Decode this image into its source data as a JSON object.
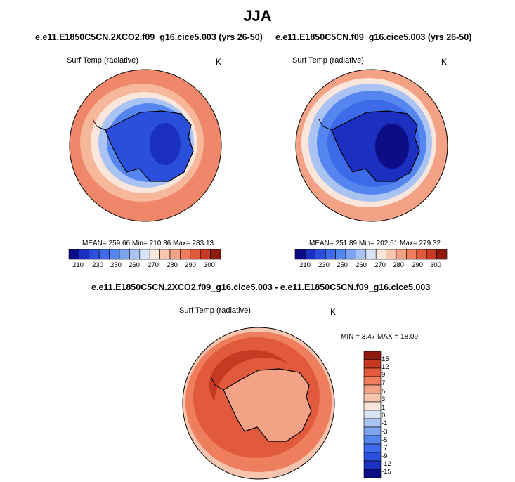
{
  "title": "JJA",
  "panels": [
    {
      "case": "e.e11.E1850C5CN.2XCO2.f09_g16.cice5.003 (yrs 26-50)",
      "variable": "Surf Temp (radiative)",
      "units": "K",
      "stats": "MEAN= 259.66  Min= 210.36  Max= 283.13",
      "colorbar_ticks": [
        "210",
        "230",
        "250",
        "260",
        "270",
        "280",
        "290",
        "300"
      ]
    },
    {
      "case": "e.e11.E1850C5CN.f09_g16.cice5.003 (yrs 26-50)",
      "variable": "Surf Temp (radiative)",
      "units": "K",
      "stats": "MEAN= 251.89  Min= 202.51  Max= 279.32",
      "colorbar_ticks": [
        "210",
        "230",
        "250",
        "260",
        "270",
        "280",
        "290",
        "300"
      ]
    }
  ],
  "difference": {
    "case": "e.e11.E1850C5CN.2XCO2.f09_g16.cice5.003 - e.e11.E1850C5CN.f09_g16.cice5.003",
    "variable": "Surf Temp (radiative)",
    "units": "K",
    "stats": "MIN =   3.47 MAX =  18.09",
    "colorbar_ticks": [
      "15",
      "12",
      "9",
      "7",
      "5",
      "3",
      "1",
      "0",
      "-1",
      "-3",
      "-5",
      "-7",
      "-9",
      "-12",
      "-15"
    ]
  },
  "colors": {
    "abs_scale": [
      "#0b0c86",
      "#1b2fc0",
      "#2a4fdc",
      "#3c6ae8",
      "#5586ef",
      "#7ea4f1",
      "#a9c3f3",
      "#d8e4f6",
      "#fbe6dc",
      "#f7c4ad",
      "#f3a285",
      "#ee7e5e",
      "#e25a3c",
      "#c63923",
      "#8f1a0e"
    ],
    "diff_scale": [
      "#8f1a0e",
      "#c63923",
      "#e25a3c",
      "#ee7e5e",
      "#f3a285",
      "#f7c4ad",
      "#fbe6dc",
      "#d8e4f6",
      "#a9c3f3",
      "#7ea4f1",
      "#5586ef",
      "#3c6ae8",
      "#2a4fdc",
      "#1b2fc0",
      "#0b0c86"
    ]
  }
}
